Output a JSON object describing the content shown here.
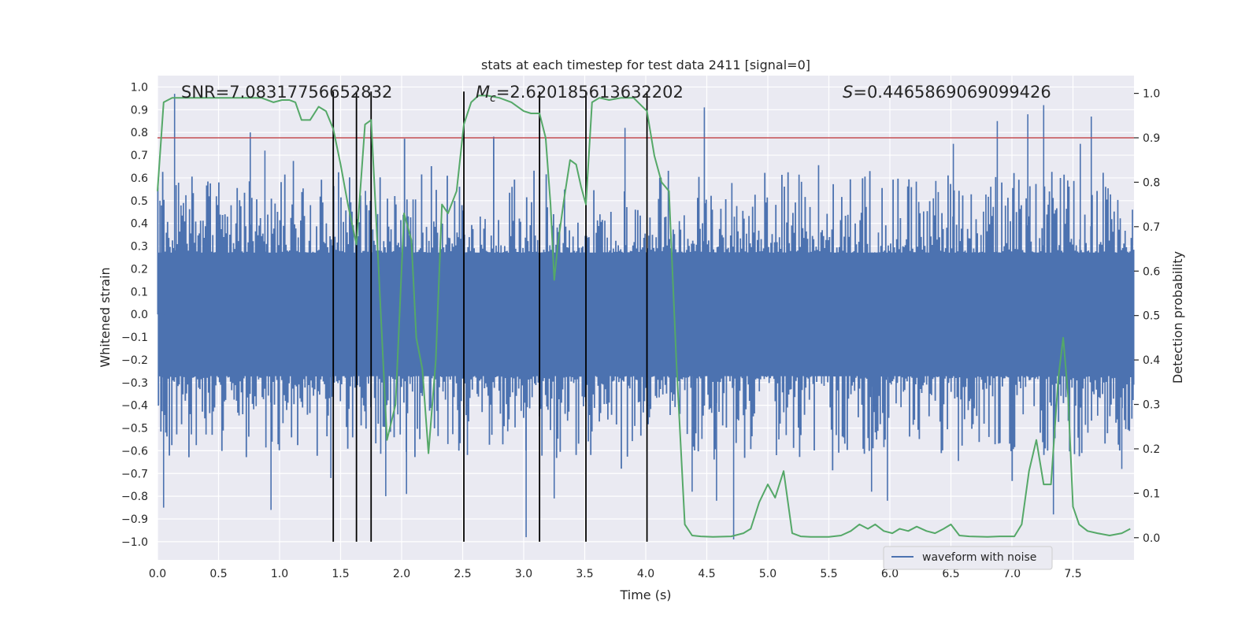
{
  "chart_data": {
    "type": "line",
    "title": "stats at each timestep for test data 2411 [signal=0]",
    "xlabel": "Time (s)",
    "ylabel_left": "Whitened strain",
    "ylabel_right": "Detection probability",
    "xlim": [
      0.0,
      8.0
    ],
    "ylim_left": [
      -1.08,
      1.05
    ],
    "ylim_right": [
      -0.05,
      1.04
    ],
    "x_ticks": [
      "0.0",
      "0.5",
      "1.0",
      "1.5",
      "2.0",
      "2.5",
      "3.0",
      "3.5",
      "4.0",
      "4.5",
      "5.0",
      "5.5",
      "6.0",
      "6.5",
      "7.0",
      "7.5"
    ],
    "x_tick_values": [
      0.0,
      0.5,
      1.0,
      1.5,
      2.0,
      2.5,
      3.0,
      3.5,
      4.0,
      4.5,
      5.0,
      5.5,
      6.0,
      6.5,
      7.0,
      7.5
    ],
    "y_left_ticks": [
      "1.0",
      "0.9",
      "0.8",
      "0.7",
      "0.6",
      "0.5",
      "0.4",
      "0.3",
      "0.2",
      "0.1",
      "0.0",
      "−0.1",
      "−0.2",
      "−0.3",
      "−0.4",
      "−0.5",
      "−0.6",
      "−0.7",
      "−0.8",
      "−0.9",
      "−1.0"
    ],
    "y_left_tick_values": [
      1.0,
      0.9,
      0.8,
      0.7,
      0.6,
      0.5,
      0.4,
      0.3,
      0.2,
      0.1,
      0.0,
      -0.1,
      -0.2,
      -0.3,
      -0.4,
      -0.5,
      -0.6,
      -0.7,
      -0.8,
      -0.9,
      -1.0
    ],
    "y_right_ticks": [
      "1.0",
      "0.9",
      "0.8",
      "0.7",
      "0.6",
      "0.5",
      "0.4",
      "0.3",
      "0.2",
      "0.1",
      "0.0"
    ],
    "y_right_tick_values": [
      1.0,
      0.9,
      0.8,
      0.7,
      0.6,
      0.5,
      0.4,
      0.3,
      0.2,
      0.1,
      0.0
    ],
    "annotations": {
      "snr": "SNR=7.08317756652832",
      "mc_symbol": "M",
      "mc_sub": "c",
      "mc_value": "=2.620185613632202",
      "s_symbol": "S",
      "s_value": "=0.4465869069099426"
    },
    "threshold": {
      "value": 0.9,
      "axis": "right",
      "color": "#c44e52"
    },
    "vertical_markers": [
      1.44,
      1.63,
      1.75,
      2.51,
      3.13,
      3.51,
      4.01
    ],
    "marker_range_left": [
      -1.0,
      0.98
    ],
    "legend": {
      "label": "waveform with noise",
      "position": "lower-right"
    },
    "series": [
      {
        "name": "waveform with noise",
        "axis": "left",
        "color": "#4c72b0",
        "x_range": [
          0.0,
          8.0
        ],
        "band_typical": 0.45,
        "peaks": [
          {
            "x": 0.02,
            "y": 0.5
          },
          {
            "x": 0.05,
            "y": -0.85
          },
          {
            "x": 0.14,
            "y": 0.97
          },
          {
            "x": 0.93,
            "y": -0.86
          },
          {
            "x": 0.76,
            "y": 0.8
          },
          {
            "x": 0.88,
            "y": 0.72
          },
          {
            "x": 1.42,
            "y": -0.72
          },
          {
            "x": 1.87,
            "y": -0.8
          },
          {
            "x": 2.04,
            "y": -0.79
          },
          {
            "x": 3.02,
            "y": -0.98
          },
          {
            "x": 3.25,
            "y": -0.81
          },
          {
            "x": 3.83,
            "y": 0.82
          },
          {
            "x": 4.38,
            "y": -0.78
          },
          {
            "x": 4.48,
            "y": 0.91
          },
          {
            "x": 4.58,
            "y": -0.82
          },
          {
            "x": 4.72,
            "y": -0.99
          },
          {
            "x": 5.85,
            "y": -0.78
          },
          {
            "x": 5.98,
            "y": -0.82
          },
          {
            "x": 6.52,
            "y": 0.75
          },
          {
            "x": 6.88,
            "y": 0.85
          },
          {
            "x": 7.13,
            "y": 0.88
          },
          {
            "x": 7.26,
            "y": 0.92
          },
          {
            "x": 7.34,
            "y": -0.88
          },
          {
            "x": 7.56,
            "y": 0.75
          },
          {
            "x": 7.65,
            "y": 0.87
          },
          {
            "x": 7.9,
            "y": -0.68
          }
        ]
      },
      {
        "name": "detection probability",
        "axis": "right",
        "color": "#55a868",
        "x": [
          0.0,
          0.05,
          0.12,
          0.25,
          0.4,
          0.55,
          0.7,
          0.85,
          0.95,
          1.02,
          1.08,
          1.13,
          1.18,
          1.25,
          1.32,
          1.38,
          1.44,
          1.5,
          1.56,
          1.63,
          1.7,
          1.75,
          1.8,
          1.88,
          1.95,
          2.02,
          2.08,
          2.12,
          2.17,
          2.22,
          2.28,
          2.33,
          2.38,
          2.45,
          2.51,
          2.57,
          2.63,
          2.7,
          2.8,
          2.9,
          3.0,
          3.06,
          3.13,
          3.18,
          3.22,
          3.25,
          3.28,
          3.33,
          3.38,
          3.43,
          3.47,
          3.51,
          3.56,
          3.62,
          3.7,
          3.8,
          3.9,
          4.01,
          4.07,
          4.13,
          4.19,
          4.25,
          4.32,
          4.38,
          4.45,
          4.55,
          4.7,
          4.8,
          4.86,
          4.93,
          5.0,
          5.06,
          5.13,
          5.2,
          5.27,
          5.35,
          5.5,
          5.6,
          5.68,
          5.75,
          5.82,
          5.88,
          5.95,
          6.02,
          6.08,
          6.15,
          6.22,
          6.3,
          6.37,
          6.44,
          6.5,
          6.57,
          6.65,
          6.8,
          6.9,
          7.02,
          7.08,
          7.14,
          7.2,
          7.26,
          7.32,
          7.38,
          7.42,
          7.46,
          7.5,
          7.55,
          7.62,
          7.7,
          7.8,
          7.9,
          7.97
        ],
        "y": [
          0.78,
          0.98,
          0.99,
          0.99,
          0.99,
          0.99,
          0.99,
          0.99,
          0.98,
          0.985,
          0.985,
          0.98,
          0.94,
          0.94,
          0.97,
          0.96,
          0.92,
          0.84,
          0.75,
          0.66,
          0.93,
          0.94,
          0.67,
          0.22,
          0.3,
          0.73,
          0.67,
          0.45,
          0.38,
          0.19,
          0.4,
          0.75,
          0.73,
          0.78,
          0.93,
          0.98,
          0.995,
          0.995,
          0.99,
          0.98,
          0.96,
          0.955,
          0.955,
          0.9,
          0.75,
          0.58,
          0.66,
          0.76,
          0.85,
          0.84,
          0.79,
          0.75,
          0.98,
          0.99,
          0.985,
          0.99,
          0.99,
          0.96,
          0.86,
          0.8,
          0.78,
          0.4,
          0.03,
          0.005,
          0.003,
          0.002,
          0.003,
          0.01,
          0.02,
          0.08,
          0.12,
          0.09,
          0.15,
          0.01,
          0.003,
          0.002,
          0.002,
          0.005,
          0.015,
          0.03,
          0.02,
          0.03,
          0.015,
          0.01,
          0.02,
          0.015,
          0.025,
          0.015,
          0.01,
          0.02,
          0.03,
          0.005,
          0.003,
          0.002,
          0.003,
          0.003,
          0.03,
          0.15,
          0.22,
          0.12,
          0.12,
          0.36,
          0.45,
          0.32,
          0.07,
          0.03,
          0.015,
          0.01,
          0.005,
          0.01,
          0.02
        ]
      }
    ]
  }
}
